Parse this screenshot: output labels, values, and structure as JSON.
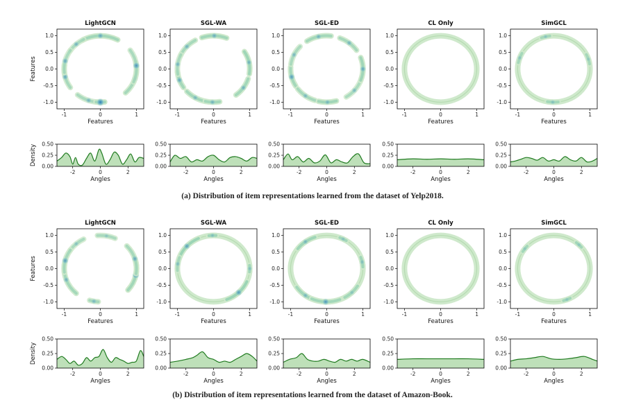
{
  "figure": {
    "captions": [
      "(a) Distribution of item representations learned from the dataset of Yelp2018.",
      "(b) Distribution of item representations learned from the dataset of Amazon-Book."
    ],
    "colors": {
      "ring_light": "#cfe9cc",
      "ring_dark": "#2b7bb9",
      "density_line": "#1f7a1f",
      "density_fill": "#a8d5a2"
    }
  },
  "chart_data": [
    {
      "group": "(a) Yelp2018",
      "ring_charts": {
        "type": "heatmap",
        "xlabel": "Features",
        "ylabel": "Features",
        "xlim": [
          -1.2,
          1.2
        ],
        "ylim": [
          -1.2,
          1.2
        ],
        "xticks": [
          -1,
          0,
          1
        ],
        "yticks": [
          1.0,
          0.5,
          0.0,
          -0.5,
          -1.0
        ],
        "ytick_labels": [
          "1.0",
          "0.5",
          "0.0",
          "-0.5",
          "-1.0"
        ]
      },
      "density_charts": {
        "type": "area",
        "xlabel": "Angles",
        "ylabel": "Density",
        "xlim": [
          -3.14,
          3.14
        ],
        "ylim": [
          0,
          0.5
        ],
        "xticks": [
          -2,
          0,
          2
        ],
        "yticks": [
          0.0,
          0.25,
          0.5
        ],
        "ytick_labels": [
          "0.00",
          "0.25",
          "0.50"
        ]
      },
      "panels": [
        {
          "title": "LightGCN",
          "full_ring": false,
          "clusters": [
            [
              -2.9,
              0.35,
              0.3,
              0.6
            ],
            [
              -1.9,
              0.35,
              0.25,
              0.5
            ],
            [
              -1.57,
              0.12,
              0.4,
              1.0
            ],
            [
              -0.3,
              0.5,
              0.32,
              0.6
            ],
            [
              0.1,
              0.5,
              0.25,
              0.8
            ],
            [
              1.57,
              0.5,
              0.4,
              0.6
            ],
            [
              2.3,
              0.25,
              0.22,
              0.5
            ],
            [
              2.9,
              0.35,
              0.22,
              0.6
            ]
          ],
          "density": {
            "x": [
              -3.14,
              -2.8,
              -2.5,
              -2.2,
              -2.0,
              -1.8,
              -1.6,
              -1.3,
              -1.0,
              -0.7,
              -0.4,
              -0.1,
              0.1,
              0.4,
              0.7,
              1.0,
              1.3,
              1.6,
              1.9,
              2.2,
              2.5,
              2.8,
              3.14
            ],
            "y": [
              0.12,
              0.2,
              0.3,
              0.22,
              0.05,
              0.2,
              0.05,
              0.03,
              0.18,
              0.3,
              0.12,
              0.38,
              0.3,
              0.05,
              0.15,
              0.32,
              0.25,
              0.05,
              0.15,
              0.28,
              0.1,
              0.2,
              0.18
            ]
          }
        },
        {
          "title": "SGL-WA",
          "full_ring": false,
          "clusters": [
            [
              -2.8,
              0.25,
              0.35,
              0.6
            ],
            [
              -2.1,
              0.3,
              0.35,
              0.45
            ],
            [
              -1.6,
              0.2,
              0.35,
              0.5
            ],
            [
              -0.6,
              0.3,
              0.35,
              0.5
            ],
            [
              0.2,
              0.35,
              0.5,
              0.5
            ],
            [
              1.55,
              0.35,
              0.4,
              0.55
            ],
            [
              2.4,
              0.3,
              0.3,
              0.5
            ],
            [
              3.0,
              0.3,
              0.25,
              0.5
            ]
          ],
          "density": {
            "x": [
              -3.14,
              -2.8,
              -2.4,
              -2.0,
              -1.6,
              -1.2,
              -0.8,
              -0.4,
              0.0,
              0.4,
              0.8,
              1.2,
              1.6,
              2.0,
              2.4,
              2.8,
              3.14
            ],
            "y": [
              0.1,
              0.25,
              0.18,
              0.22,
              0.1,
              0.15,
              0.12,
              0.22,
              0.25,
              0.15,
              0.1,
              0.2,
              0.22,
              0.18,
              0.12,
              0.2,
              0.18
            ]
          }
        },
        {
          "title": "SGL-ED",
          "full_ring": false,
          "clusters": [
            [
              -2.9,
              0.3,
              0.35,
              0.7
            ],
            [
              -2.2,
              0.3,
              0.3,
              0.45
            ],
            [
              -1.55,
              0.25,
              0.45,
              0.45
            ],
            [
              -0.7,
              0.3,
              0.22,
              0.45
            ],
            [
              0.0,
              0.35,
              0.45,
              0.6
            ],
            [
              0.9,
              0.3,
              0.3,
              0.5
            ],
            [
              1.8,
              0.35,
              0.35,
              0.5
            ],
            [
              2.7,
              0.3,
              0.25,
              0.45
            ]
          ],
          "density": {
            "x": [
              -3.14,
              -2.8,
              -2.5,
              -2.1,
              -1.7,
              -1.3,
              -0.9,
              -0.5,
              -0.1,
              0.3,
              0.7,
              1.1,
              1.5,
              1.9,
              2.3,
              2.7,
              3.14
            ],
            "y": [
              0.15,
              0.28,
              0.15,
              0.22,
              0.1,
              0.18,
              0.08,
              0.12,
              0.26,
              0.08,
              0.15,
              0.1,
              0.08,
              0.22,
              0.28,
              0.08,
              0.06
            ]
          }
        },
        {
          "title": "CL Only",
          "full_ring": true,
          "clusters": [],
          "density": {
            "x": [
              -3.14,
              -2.0,
              -1.0,
              0.0,
              1.0,
              2.0,
              3.14
            ],
            "y": [
              0.15,
              0.17,
              0.16,
              0.17,
              0.16,
              0.17,
              0.15
            ]
          }
        },
        {
          "title": "SimGCL",
          "full_ring": true,
          "clusters": [
            [
              -1.6,
              0.15,
              0.35,
              0.35
            ],
            [
              0.3,
              0.15,
              0.3,
              0.25
            ],
            [
              1.8,
              0.12,
              0.3,
              0.3
            ],
            [
              2.8,
              0.15,
              0.25,
              0.3
            ]
          ],
          "density": {
            "x": [
              -3.14,
              -2.8,
              -2.4,
              -2.0,
              -1.6,
              -1.2,
              -0.8,
              -0.4,
              0.0,
              0.4,
              0.8,
              1.2,
              1.6,
              2.0,
              2.4,
              2.8,
              3.14
            ],
            "y": [
              0.1,
              0.12,
              0.16,
              0.2,
              0.18,
              0.14,
              0.2,
              0.12,
              0.15,
              0.12,
              0.22,
              0.15,
              0.12,
              0.2,
              0.1,
              0.12,
              0.18
            ]
          }
        }
      ]
    },
    {
      "group": "(b) Amazon-Book",
      "ring_charts": {
        "type": "heatmap",
        "xlabel": "Features",
        "ylabel": "Features",
        "xlim": [
          -1.2,
          1.2
        ],
        "ylim": [
          -1.2,
          1.2
        ],
        "xticks": [
          -1,
          0,
          1
        ],
        "yticks": [
          1.0,
          0.5,
          0.0,
          -0.5,
          -1.0
        ],
        "ytick_labels": [
          "1.0",
          "0.5",
          "0.0",
          "-0.5",
          "-1.0"
        ]
      },
      "density_charts": {
        "type": "area",
        "xlabel": "Angles",
        "ylabel": "Density",
        "xlim": [
          -3.14,
          3.14
        ],
        "ylim": [
          0,
          0.5
        ],
        "xticks": [
          -2,
          0,
          2
        ],
        "yticks": [
          0.0,
          0.25,
          0.5
        ],
        "ytick_labels": [
          "0.00",
          "0.25",
          "0.50"
        ]
      },
      "panels": [
        {
          "title": "LightGCN",
          "full_ring": false,
          "clusters": [
            [
              -2.8,
              0.5,
              0.35,
              0.5
            ],
            [
              -1.75,
              0.12,
              0.3,
              0.45
            ],
            [
              -0.2,
              0.5,
              0.4,
              0.8
            ],
            [
              0.3,
              0.45,
              0.3,
              0.6
            ],
            [
              1.4,
              0.25,
              0.25,
              0.3
            ],
            [
              2.3,
              0.25,
              0.22,
              0.35
            ],
            [
              2.9,
              0.35,
              0.3,
              0.7
            ]
          ],
          "density": {
            "x": [
              -3.14,
              -2.8,
              -2.5,
              -2.2,
              -1.9,
              -1.6,
              -1.3,
              -1.0,
              -0.7,
              -0.4,
              -0.1,
              0.2,
              0.5,
              0.8,
              1.1,
              1.4,
              1.7,
              2.0,
              2.3,
              2.6,
              2.9,
              3.14
            ],
            "y": [
              0.15,
              0.2,
              0.15,
              0.08,
              0.12,
              0.05,
              0.08,
              0.18,
              0.12,
              0.18,
              0.2,
              0.32,
              0.18,
              0.1,
              0.18,
              0.15,
              0.12,
              0.08,
              0.1,
              0.12,
              0.3,
              0.2
            ]
          }
        },
        {
          "title": "SGL-WA",
          "full_ring": true,
          "clusters": [
            [
              -0.8,
              0.4,
              0.6,
              0.7
            ],
            [
              0.0,
              0.1,
              0.4,
              0.35
            ],
            [
              1.6,
              0.1,
              0.5,
              0.35
            ],
            [
              2.4,
              0.4,
              0.6,
              0.65
            ],
            [
              3.0,
              0.2,
              0.25,
              0.4
            ]
          ],
          "density": {
            "x": [
              -3.14,
              -2.6,
              -2.0,
              -1.5,
              -1.2,
              -0.8,
              -0.4,
              0.0,
              0.4,
              0.8,
              1.2,
              1.6,
              2.0,
              2.4,
              2.8,
              3.14
            ],
            "y": [
              0.1,
              0.12,
              0.15,
              0.18,
              0.22,
              0.28,
              0.18,
              0.15,
              0.1,
              0.12,
              0.1,
              0.15,
              0.2,
              0.25,
              0.2,
              0.12
            ]
          }
        },
        {
          "title": "SGL-ED",
          "full_ring": true,
          "clusters": [
            [
              -2.2,
              0.35,
              0.4,
              0.45
            ],
            [
              -1.6,
              0.4,
              0.35,
              0.75
            ],
            [
              -0.8,
              0.25,
              0.35,
              0.3
            ],
            [
              0.2,
              0.15,
              0.45,
              0.35
            ],
            [
              1.1,
              0.1,
              0.4,
              0.3
            ],
            [
              2.2,
              0.3,
              0.5,
              0.45
            ]
          ],
          "density": {
            "x": [
              -3.14,
              -2.7,
              -2.2,
              -1.8,
              -1.4,
              -1.0,
              -0.6,
              -0.2,
              0.2,
              0.6,
              1.0,
              1.4,
              1.8,
              2.2,
              2.6,
              3.14
            ],
            "y": [
              0.1,
              0.15,
              0.18,
              0.25,
              0.15,
              0.12,
              0.12,
              0.15,
              0.12,
              0.1,
              0.15,
              0.12,
              0.15,
              0.12,
              0.15,
              0.1
            ]
          }
        },
        {
          "title": "CL Only",
          "full_ring": true,
          "clusters": [],
          "density": {
            "x": [
              -3.14,
              -2.0,
              -1.0,
              0.0,
              1.0,
              2.0,
              3.14
            ],
            "y": [
              0.15,
              0.16,
              0.16,
              0.16,
              0.16,
              0.16,
              0.15
            ]
          }
        },
        {
          "title": "SimGCL",
          "full_ring": true,
          "clusters": [
            [
              -1.2,
              0.1,
              0.4,
              0.25
            ],
            [
              0.8,
              0.1,
              0.4,
              0.25
            ],
            [
              2.5,
              0.1,
              0.35,
              0.25
            ]
          ],
          "density": {
            "x": [
              -3.14,
              -2.6,
              -2.0,
              -1.4,
              -0.8,
              -0.2,
              0.4,
              1.0,
              1.6,
              2.2,
              2.8,
              3.14
            ],
            "y": [
              0.12,
              0.15,
              0.16,
              0.18,
              0.2,
              0.16,
              0.15,
              0.16,
              0.18,
              0.2,
              0.15,
              0.12
            ]
          }
        }
      ]
    }
  ]
}
